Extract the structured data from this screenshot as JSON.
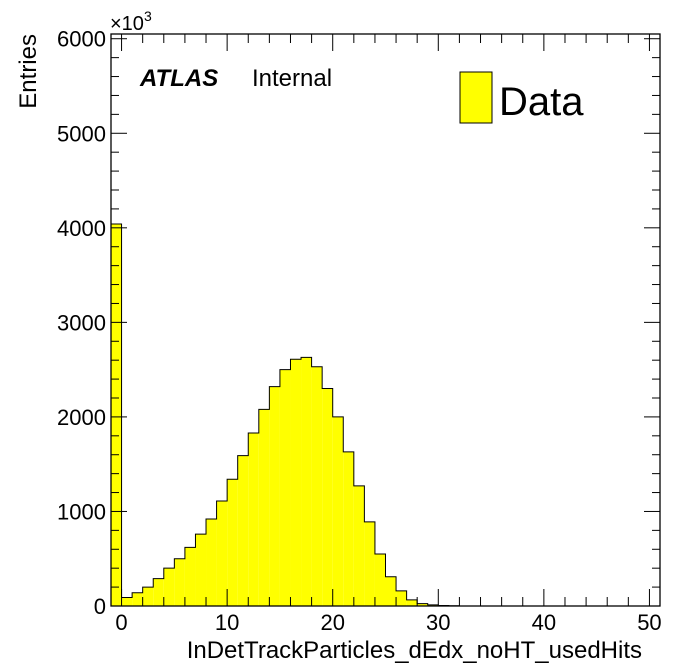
{
  "chart_data": {
    "type": "bar",
    "title": "",
    "xlabel": "InDetTrackParticles_dEdx_noHT_usedHits",
    "ylabel": "Entries",
    "y_multiplier_base": "×10",
    "y_multiplier_exp": "3",
    "xlim": [
      -1,
      51
    ],
    "ylim": [
      0,
      6050
    ],
    "x_ticks": [
      0,
      10,
      20,
      30,
      40,
      50
    ],
    "y_ticks": [
      0,
      1000,
      2000,
      3000,
      4000,
      5000,
      6000
    ],
    "x_tick_labels": [
      "0",
      "10",
      "20",
      "30",
      "40",
      "50"
    ],
    "y_tick_labels": [
      "0",
      "1000",
      "2000",
      "3000",
      "4000",
      "5000",
      "6000"
    ],
    "bin_width": 1,
    "bin_edges_start": -1,
    "values": [
      4040,
      90,
      140,
      200,
      290,
      400,
      500,
      620,
      760,
      920,
      1110,
      1340,
      1590,
      1830,
      2080,
      2320,
      2500,
      2610,
      2630,
      2530,
      2300,
      2000,
      1630,
      1270,
      890,
      550,
      310,
      160,
      65,
      25,
      12,
      5,
      2,
      0,
      0,
      0,
      0,
      0,
      0,
      0,
      0,
      0,
      0,
      0,
      0,
      0,
      0,
      0,
      0,
      0,
      0,
      0
    ],
    "fill_color": "#ffff00",
    "line_color": "#000000",
    "legend": [
      {
        "label": "Data",
        "color": "#ffff00"
      }
    ],
    "legend_position": "top-right",
    "grid": false
  },
  "annotation": {
    "experiment": "ATLAS",
    "status": "Internal"
  }
}
